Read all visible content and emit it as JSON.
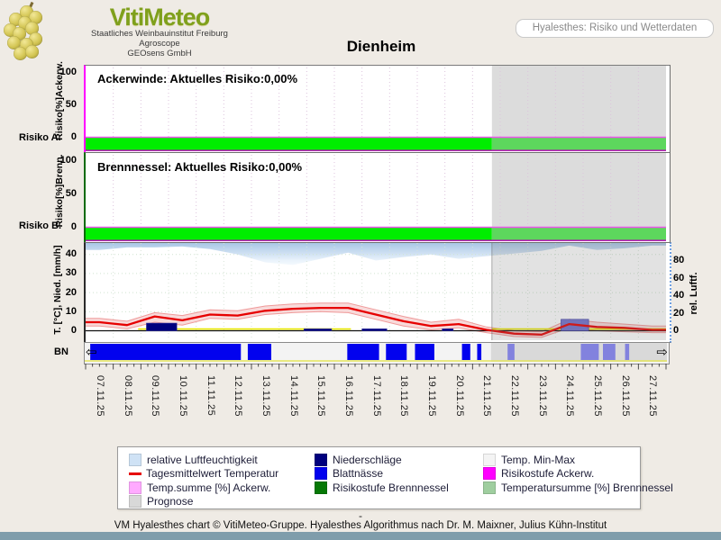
{
  "header": {
    "brand": "VitiMeteo",
    "brand_sub1": "Staatliches Weinbauinstitut Freiburg",
    "brand_sub2": "Agroscope",
    "brand_sub3": "GEOsens GmbH",
    "page_label": "Hyalesthes: Risiko und Wetterdaten"
  },
  "title": "Dienheim",
  "panels": {
    "ackerwinde": {
      "annotation": "Ackerwinde: Aktuelles Risiko:0,00%",
      "ylabel": "Risiko[%]Ackerw.",
      "side_label": "Risiko A.",
      "current_risk": "0,00%"
    },
    "brennnessel": {
      "annotation": "Brennnessel: Aktuelles Risiko:0,00%",
      "ylabel": "Risiko[%]Brenn.",
      "side_label": "Risiko B.",
      "current_risk": "0,00%"
    },
    "weather": {
      "ylabel": "T. [°C], Nied. [mm/h]",
      "ylabel_right": "rel. Luftf.",
      "side_label": "BN"
    }
  },
  "icons": {
    "scroll_left": "⇦",
    "scroll_right": "⇨"
  },
  "legend": {
    "columns": [
      [
        {
          "swatch": "#cfe2f5",
          "type": "box",
          "label": "relative Luftfeuchtigkeit"
        },
        {
          "swatch": "#e60000",
          "type": "line",
          "label": "Tagesmittelwert Temperatur"
        },
        {
          "swatch": "#ffaaff",
          "type": "box",
          "label": "Temp.summe [%] Ackerw."
        },
        {
          "swatch": "#d8d8d8",
          "type": "box",
          "label": "Prognose"
        }
      ],
      [
        {
          "swatch": "#00007e",
          "type": "box",
          "label": "Niederschläge"
        },
        {
          "swatch": "#0202ee",
          "type": "box",
          "label": "Blattnässe"
        },
        {
          "swatch": "#067806",
          "type": "box",
          "label": "Risikostufe Brennnessel"
        }
      ],
      [
        {
          "swatch": "#f4f4f4",
          "type": "box",
          "label": "Temp. Min-Max"
        },
        {
          "swatch": "#ff00ff",
          "type": "box",
          "label": "Risikostufe Ackerw."
        },
        {
          "swatch": "#9fce9f",
          "type": "box",
          "label": "Temperatursumme [%] Brennnessel"
        }
      ]
    ]
  },
  "footer": {
    "separator": "-",
    "credit": "VM Hyalesthes chart © VitiMeteo-Gruppe. Hyalesthes Algorithmus nach Dr. M. Maixner, Julius Kühn-Institut"
  },
  "chart_data": {
    "type": "line",
    "title": "Dienheim",
    "x_labels": [
      "07.11.25",
      "08.11.25",
      "09.11.25",
      "10.11.25",
      "11.11.25",
      "12.11.25",
      "13.11.25",
      "14.11.25",
      "15.11.25",
      "16.11.25",
      "17.11.25",
      "18.11.25",
      "19.11.25",
      "20.11.25",
      "21.11.25",
      "22.11.25",
      "23.11.25",
      "24.11.25",
      "25.11.25",
      "26.11.25",
      "27.11.25"
    ],
    "forecast_start_day": 14.7,
    "axis_left": {
      "label": "T. [°C], Nied. [mm/h]",
      "ticks": [
        0,
        10,
        20,
        30,
        40
      ],
      "range": [
        -4,
        46
      ]
    },
    "axis_right": {
      "label": "rel. Luftf.",
      "ticks": [
        0,
        20,
        40,
        60,
        80
      ],
      "range": [
        0,
        100
      ]
    },
    "risk_panels": [
      {
        "name": "Ackerwinde",
        "annotation": "Ackerwinde: Aktuelles Risiko:0,00%",
        "current_risk_pct": 0,
        "ticks": [
          0,
          50,
          100
        ],
        "risk_series_const_pct": 0,
        "level_band": "green"
      },
      {
        "name": "Brennnessel",
        "annotation": "Brennnessel: Aktuelles Risiko:0,00%",
        "current_risk_pct": 0,
        "ticks": [
          0,
          50,
          100
        ],
        "risk_series_const_pct": 0,
        "level_band": "green"
      }
    ],
    "series": {
      "humidity_pct": [
        92,
        95,
        95,
        96,
        93,
        87,
        78,
        75,
        82,
        89,
        80,
        84,
        87,
        82,
        85,
        88,
        91,
        97,
        92,
        94,
        97
      ],
      "temp_mean_c": [
        4.5,
        3,
        7.5,
        5.5,
        8.5,
        8,
        10.5,
        11.5,
        12,
        12,
        8.5,
        5,
        2.5,
        3.5,
        0.5,
        -1.5,
        -2,
        3.5,
        2,
        1.5,
        0.5
      ],
      "temp_min_c": [
        2.5,
        1,
        4.5,
        3,
        6.5,
        6,
        8.5,
        9.5,
        10,
        9.5,
        6,
        2.5,
        0.5,
        1.5,
        -1,
        -3,
        -3.5,
        1.5,
        0,
        -0.5,
        -1
      ],
      "temp_max_c": [
        6.5,
        5,
        9.5,
        8,
        11,
        10.5,
        13,
        14,
        14.5,
        14.5,
        11,
        7.5,
        4.5,
        6,
        2,
        0,
        -0.5,
        6,
        4.5,
        3.5,
        2.5
      ],
      "precip_bars": [
        {
          "from_day": 2.2,
          "to_day": 3.3,
          "mm": 4,
          "forecast": false
        },
        {
          "from_day": 7.9,
          "to_day": 8.9,
          "mm": 1,
          "forecast": false
        },
        {
          "from_day": 10.0,
          "to_day": 10.9,
          "mm": 1,
          "forecast": false
        },
        {
          "from_day": 12.9,
          "to_day": 13.3,
          "mm": 1,
          "forecast": false
        },
        {
          "from_day": 17.2,
          "to_day": 18.2,
          "mm": 6,
          "forecast": true
        }
      ],
      "leaf_wetness_observed_days": [
        [
          0.2,
          5.65
        ],
        [
          5.9,
          6.75
        ],
        [
          9.5,
          10.65
        ],
        [
          10.9,
          11.65
        ],
        [
          11.95,
          12.65
        ],
        [
          13.65,
          13.95
        ],
        [
          14.2,
          14.35
        ]
      ],
      "leaf_wetness_forecast_days": [
        [
          15.3,
          15.55
        ],
        [
          17.95,
          18.6
        ],
        [
          18.75,
          19.2
        ],
        [
          19.55,
          19.7
        ]
      ],
      "temp_sum_line_days": [
        [
          1.9,
          9.6
        ],
        [
          14.7,
          21
        ]
      ]
    },
    "colors": {
      "humidity_top": "#a9c6e6",
      "humidity_bottom": "#f4f9fe",
      "temp_line": "#e60000",
      "minmax_band": "#f7d6d6",
      "minmax_edge": "#ef9a9a",
      "precip": "#00007e",
      "precip_forecast": "#7171ce",
      "leaf_wetness": "#0202ee",
      "leaf_wetness_forecast": "#8282de",
      "risk_green": "#00ee00",
      "risk_green_forecast": "#5dd75d",
      "forecast_bg": "#dcdcdc",
      "risk_line_magenta": "#ee55ee",
      "temp_sum_yellow": "#e8e800",
      "footer_bar": "#7f9dab"
    }
  }
}
